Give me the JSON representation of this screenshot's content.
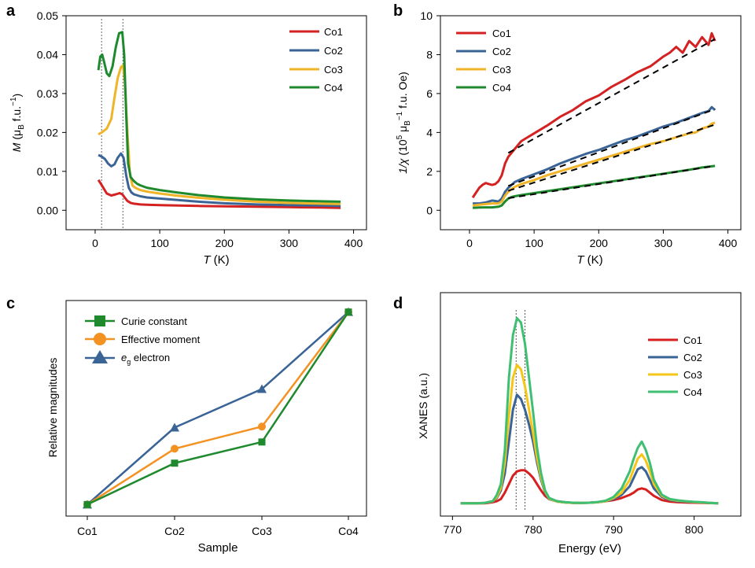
{
  "chart_data": [
    {
      "panel_label": "a",
      "type": "line",
      "xlabel_var": "T",
      "xlabel_unit": " (K)",
      "ylabel_var": "M",
      "ylabel_unit_a": " (μ",
      "ylabel_unit_sub": "B",
      "ylabel_unit_b": " f.u.",
      "ylabel_unit_sup": "−1",
      "ylabel_unit_c": ")",
      "xlim": [
        -45,
        420
      ],
      "ylim": [
        -0.005,
        0.05
      ],
      "xticks": [
        "0",
        "100",
        "200",
        "300",
        "400"
      ],
      "yticks": [
        "0.00",
        "0.01",
        "0.02",
        "0.03",
        "0.04",
        "0.05"
      ],
      "vlines": [
        10,
        43
      ],
      "legend_position": "top-right",
      "series": [
        {
          "name": "Co1",
          "color": "#d42121",
          "x": [
            5,
            10,
            18,
            25,
            32,
            38,
            42,
            46,
            50,
            55,
            60,
            70,
            80,
            100,
            130,
            160,
            200,
            250,
            300,
            350,
            380
          ],
          "y": [
            0.0078,
            0.0065,
            0.0043,
            0.0038,
            0.0041,
            0.0044,
            0.0041,
            0.0032,
            0.0024,
            0.0019,
            0.0017,
            0.0015,
            0.0014,
            0.0013,
            0.0012,
            0.0011,
            0.001,
            0.0009,
            0.0008,
            0.0007,
            0.0006
          ]
        },
        {
          "name": "Co2",
          "color": "#3a6496",
          "x": [
            5,
            10,
            15,
            20,
            25,
            30,
            35,
            40,
            44,
            48,
            52,
            56,
            60,
            70,
            80,
            100,
            130,
            160,
            200,
            250,
            300,
            350,
            380
          ],
          "y": [
            0.0142,
            0.0138,
            0.0132,
            0.012,
            0.0113,
            0.0118,
            0.0135,
            0.0146,
            0.0135,
            0.009,
            0.0058,
            0.0046,
            0.0041,
            0.0036,
            0.0033,
            0.003,
            0.0026,
            0.0022,
            0.0018,
            0.0015,
            0.0013,
            0.0012,
            0.0011
          ]
        },
        {
          "name": "Co3",
          "color": "#f0b429",
          "x": [
            5,
            10,
            18,
            25,
            30,
            35,
            40,
            43,
            46,
            50,
            54,
            58,
            62,
            70,
            80,
            100,
            130,
            160,
            200,
            250,
            300,
            350,
            380
          ],
          "y": [
            0.0195,
            0.02,
            0.021,
            0.0235,
            0.029,
            0.034,
            0.0368,
            0.0372,
            0.033,
            0.02,
            0.009,
            0.0063,
            0.0058,
            0.0052,
            0.0048,
            0.0043,
            0.0037,
            0.0032,
            0.0027,
            0.0022,
            0.0019,
            0.0017,
            0.0016
          ]
        },
        {
          "name": "Co4",
          "color": "#1f8a2d",
          "x": [
            5,
            8,
            11,
            14,
            18,
            22,
            27,
            32,
            37,
            42,
            45,
            48,
            51,
            55,
            60,
            65,
            70,
            80,
            100,
            130,
            160,
            200,
            250,
            300,
            350,
            380
          ],
          "y": [
            0.036,
            0.0395,
            0.04,
            0.038,
            0.0352,
            0.0345,
            0.037,
            0.042,
            0.0455,
            0.0458,
            0.04,
            0.025,
            0.012,
            0.0085,
            0.0075,
            0.0068,
            0.0064,
            0.0058,
            0.0052,
            0.0045,
            0.0039,
            0.0033,
            0.0028,
            0.0025,
            0.0023,
            0.0022
          ]
        }
      ]
    },
    {
      "panel_label": "b",
      "type": "line",
      "xlabel_var": "T",
      "xlabel_unit": " (K)",
      "ylabel_var": "1/χ",
      "ylabel_unit_a": " (10",
      "ylabel_unit_sup1": "5",
      "ylabel_unit_b": " μ",
      "ylabel_unit_sub": "B",
      "ylabel_unit_sup2": "−1",
      "ylabel_unit_c": " f.u. Oe)",
      "xlim": [
        -45,
        420
      ],
      "ylim": [
        -1,
        10
      ],
      "xticks": [
        "0",
        "100",
        "200",
        "300",
        "400"
      ],
      "yticks": [
        "0",
        "2",
        "4",
        "6",
        "8",
        "10"
      ],
      "legend_position": "top-left",
      "series": [
        {
          "name": "Co1",
          "color": "#d42121",
          "x": [
            5,
            10,
            15,
            20,
            25,
            30,
            35,
            40,
            45,
            50,
            55,
            60,
            65,
            70,
            80,
            90,
            100,
            120,
            140,
            160,
            180,
            200,
            220,
            240,
            260,
            280,
            300,
            310,
            320,
            330,
            340,
            350,
            360,
            370,
            375,
            380
          ],
          "y": [
            0.65,
            0.9,
            1.15,
            1.3,
            1.4,
            1.35,
            1.3,
            1.35,
            1.5,
            1.8,
            2.4,
            2.75,
            2.95,
            3.15,
            3.55,
            3.75,
            3.95,
            4.35,
            4.8,
            5.15,
            5.6,
            5.9,
            6.35,
            6.7,
            7.1,
            7.4,
            7.9,
            8.1,
            8.4,
            8.1,
            8.7,
            8.4,
            8.9,
            8.5,
            9.1,
            8.7
          ]
        },
        {
          "name": "Co2",
          "color": "#3a6496",
          "x": [
            5,
            15,
            25,
            35,
            45,
            50,
            55,
            60,
            65,
            70,
            80,
            100,
            120,
            140,
            160,
            180,
            200,
            220,
            240,
            260,
            280,
            300,
            320,
            340,
            360,
            370,
            375,
            380
          ],
          "y": [
            0.35,
            0.35,
            0.4,
            0.5,
            0.45,
            0.6,
            0.95,
            1.15,
            1.3,
            1.45,
            1.6,
            1.85,
            2.1,
            2.4,
            2.65,
            2.9,
            3.1,
            3.35,
            3.6,
            3.8,
            4.05,
            4.3,
            4.5,
            4.75,
            5.0,
            5.1,
            5.3,
            5.15
          ]
        },
        {
          "name": "Co3",
          "color": "#f0b429",
          "x": [
            5,
            15,
            25,
            35,
            45,
            50,
            55,
            60,
            65,
            70,
            80,
            100,
            120,
            140,
            160,
            180,
            200,
            220,
            240,
            260,
            280,
            300,
            320,
            340,
            350,
            360,
            370,
            375,
            380
          ],
          "y": [
            0.25,
            0.28,
            0.32,
            0.35,
            0.35,
            0.45,
            0.75,
            0.95,
            1.1,
            1.2,
            1.35,
            1.55,
            1.8,
            2.0,
            2.2,
            2.4,
            2.6,
            2.8,
            3.0,
            3.2,
            3.4,
            3.55,
            3.75,
            3.95,
            4.0,
            4.2,
            4.3,
            4.45,
            4.5
          ]
        },
        {
          "name": "Co4",
          "color": "#1f8a2d",
          "x": [
            5,
            15,
            25,
            35,
            45,
            50,
            55,
            60,
            65,
            70,
            80,
            100,
            120,
            140,
            160,
            180,
            200,
            220,
            240,
            260,
            280,
            300,
            320,
            340,
            360,
            380
          ],
          "y": [
            0.12,
            0.14,
            0.15,
            0.15,
            0.18,
            0.25,
            0.45,
            0.6,
            0.68,
            0.72,
            0.78,
            0.88,
            0.98,
            1.08,
            1.18,
            1.28,
            1.38,
            1.48,
            1.58,
            1.68,
            1.78,
            1.88,
            1.98,
            2.08,
            2.2,
            2.28
          ]
        }
      ],
      "fits": [
        {
          "x": [
            60,
            380
          ],
          "y": [
            2.95,
            8.8
          ]
        },
        {
          "x": [
            60,
            380
          ],
          "y": [
            1.25,
            5.2
          ]
        },
        {
          "x": [
            60,
            380
          ],
          "y": [
            1.0,
            4.4
          ]
        },
        {
          "x": [
            60,
            380
          ],
          "y": [
            0.62,
            2.28
          ]
        }
      ]
    },
    {
      "panel_label": "c",
      "type": "line",
      "xlabel": "Sample",
      "ylabel": "Relative magnitudes",
      "categories": [
        "Co1",
        "Co2",
        "Co3",
        "Co4"
      ],
      "ylim": [
        -0.06,
        1.06
      ],
      "legend_position": "top-left",
      "series": [
        {
          "name": "Curie constant",
          "color": "#1f8a2d",
          "marker": "square",
          "values": [
            0.0,
            0.215,
            0.325,
            1.0
          ]
        },
        {
          "name": "Effective moment",
          "color": "#f39223",
          "marker": "circle",
          "values": [
            0.0,
            0.29,
            0.405,
            1.0
          ]
        },
        {
          "name_main": "e",
          "name_sub": "g",
          "name_rest": " electron",
          "color": "#3a6496",
          "marker": "triangle",
          "values": [
            0.0,
            0.4,
            0.6,
            1.0
          ]
        }
      ]
    },
    {
      "panel_label": "d",
      "type": "line",
      "xlabel": "Energy (eV)",
      "ylabel": "XANES (a.u.)",
      "xlim": [
        768.5,
        805.8
      ],
      "ylim": [
        -0.05,
        1.0
      ],
      "xticks": [
        "770",
        "780",
        "790",
        "800"
      ],
      "yticks": [],
      "vlines": [
        777.9,
        779.0
      ],
      "legend_position": "top-right",
      "series": [
        {
          "name": "Co1",
          "color": "#d71f1f",
          "x": [
            771,
            772,
            773,
            774,
            775,
            775.5,
            776,
            776.5,
            777,
            777.5,
            778,
            778.5,
            779,
            779.5,
            780,
            780.5,
            781,
            781.5,
            782,
            783,
            784,
            785,
            786,
            787,
            788,
            789,
            790,
            791,
            792,
            792.5,
            793,
            793.5,
            794,
            794.5,
            795,
            796,
            797,
            798,
            799,
            800,
            801,
            802,
            803
          ],
          "y": [
            0.01,
            0.01,
            0.01,
            0.01,
            0.015,
            0.02,
            0.03,
            0.06,
            0.1,
            0.14,
            0.16,
            0.165,
            0.165,
            0.15,
            0.13,
            0.1,
            0.07,
            0.045,
            0.03,
            0.02,
            0.015,
            0.012,
            0.012,
            0.013,
            0.015,
            0.02,
            0.025,
            0.035,
            0.05,
            0.06,
            0.075,
            0.08,
            0.075,
            0.06,
            0.045,
            0.025,
            0.018,
            0.015,
            0.014,
            0.013,
            0.012,
            0.011,
            0.01
          ]
        },
        {
          "name": "Co2",
          "color": "#3a6496",
          "x": [
            771,
            772,
            773,
            774,
            775,
            775.5,
            776,
            776.5,
            777,
            777.5,
            778,
            778.5,
            779,
            779.5,
            780,
            780.5,
            781,
            781.5,
            782,
            783,
            784,
            785,
            786,
            787,
            788,
            789,
            790,
            791,
            792,
            792.5,
            793,
            793.5,
            794,
            794.5,
            795,
            796,
            797,
            798,
            799,
            800,
            801,
            802,
            803
          ],
          "y": [
            0.01,
            0.01,
            0.01,
            0.012,
            0.02,
            0.035,
            0.07,
            0.15,
            0.3,
            0.45,
            0.52,
            0.5,
            0.45,
            0.38,
            0.3,
            0.2,
            0.12,
            0.06,
            0.03,
            0.018,
            0.014,
            0.012,
            0.012,
            0.013,
            0.015,
            0.02,
            0.03,
            0.05,
            0.09,
            0.13,
            0.17,
            0.18,
            0.16,
            0.12,
            0.08,
            0.04,
            0.025,
            0.02,
            0.018,
            0.016,
            0.014,
            0.012,
            0.01
          ]
        },
        {
          "name": "Co3",
          "color": "#f5c518",
          "x": [
            771,
            772,
            773,
            774,
            775,
            775.5,
            776,
            776.5,
            777,
            777.5,
            778,
            778.5,
            779,
            779.5,
            780,
            780.5,
            781,
            781.5,
            782,
            783,
            784,
            785,
            786,
            787,
            788,
            789,
            790,
            791,
            792,
            792.5,
            793,
            793.5,
            794,
            794.5,
            795,
            796,
            797,
            798,
            799,
            800,
            801,
            802,
            803
          ],
          "y": [
            0.01,
            0.01,
            0.01,
            0.012,
            0.02,
            0.04,
            0.08,
            0.2,
            0.42,
            0.6,
            0.66,
            0.64,
            0.56,
            0.45,
            0.34,
            0.22,
            0.13,
            0.065,
            0.032,
            0.018,
            0.014,
            0.012,
            0.012,
            0.013,
            0.015,
            0.02,
            0.035,
            0.06,
            0.12,
            0.17,
            0.22,
            0.24,
            0.21,
            0.16,
            0.1,
            0.045,
            0.028,
            0.022,
            0.019,
            0.016,
            0.014,
            0.012,
            0.01
          ]
        },
        {
          "name": "Co4",
          "color": "#3fbf72",
          "x": [
            771,
            772,
            773,
            774,
            775,
            775.5,
            776,
            776.5,
            777,
            777.5,
            778,
            778.5,
            779,
            779.5,
            780,
            780.5,
            781,
            781.5,
            782,
            783,
            784,
            785,
            786,
            787,
            788,
            789,
            790,
            791,
            792,
            792.5,
            793,
            793.5,
            794,
            794.5,
            795,
            796,
            797,
            798,
            799,
            800,
            801,
            802,
            803
          ],
          "y": [
            0.01,
            0.01,
            0.01,
            0.012,
            0.02,
            0.05,
            0.1,
            0.26,
            0.6,
            0.8,
            0.88,
            0.86,
            0.76,
            0.6,
            0.44,
            0.27,
            0.15,
            0.07,
            0.035,
            0.02,
            0.015,
            0.013,
            0.012,
            0.013,
            0.016,
            0.022,
            0.04,
            0.08,
            0.16,
            0.22,
            0.27,
            0.3,
            0.26,
            0.2,
            0.12,
            0.05,
            0.03,
            0.024,
            0.02,
            0.017,
            0.015,
            0.012,
            0.01
          ]
        }
      ]
    }
  ]
}
